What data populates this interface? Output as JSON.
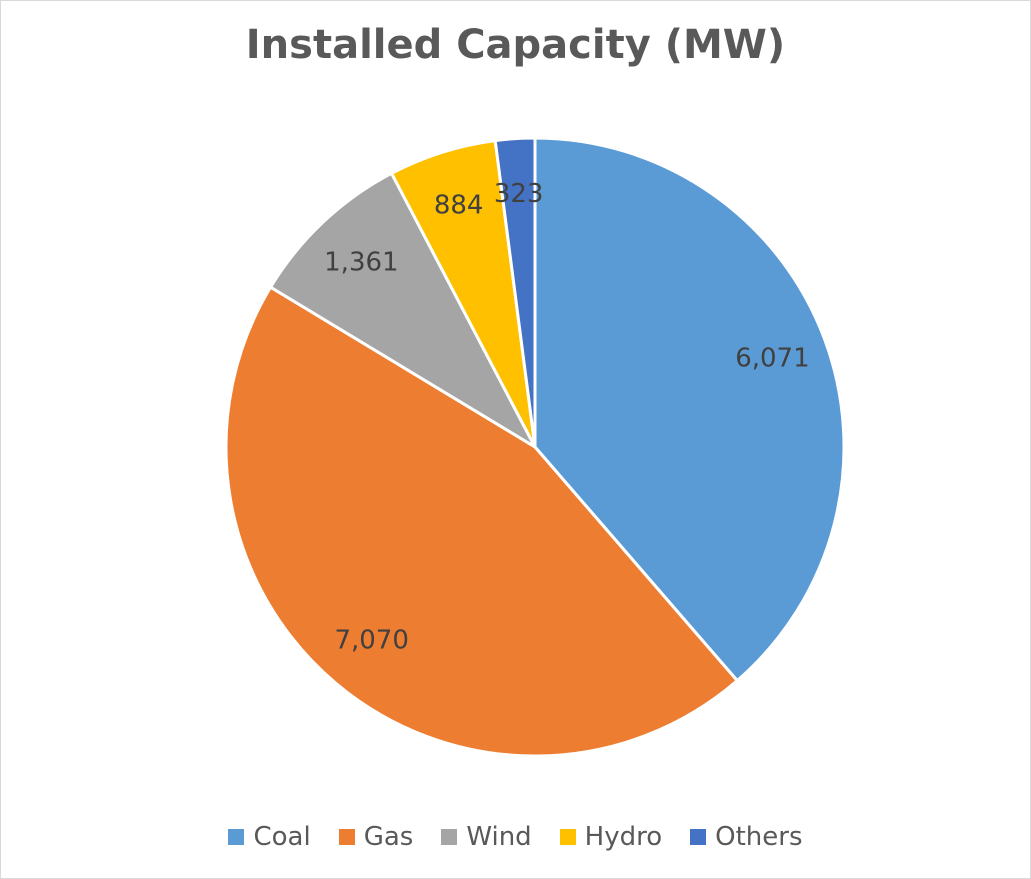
{
  "chart_data": {
    "type": "pie",
    "title": "Installed Capacity (MW)",
    "categories": [
      "Coal",
      "Gas",
      "Wind",
      "Hydro",
      "Others"
    ],
    "values": [
      6071,
      7070,
      1361,
      884,
      323
    ],
    "labels": [
      "6,071",
      "7,070",
      "1,361",
      "884",
      "323"
    ],
    "colors": [
      "#5b9bd5",
      "#ed7d31",
      "#a5a5a5",
      "#ffc000",
      "#4472c4"
    ],
    "legend_position": "bottom",
    "start_angle": "12 o'clock",
    "direction": "clockwise"
  }
}
